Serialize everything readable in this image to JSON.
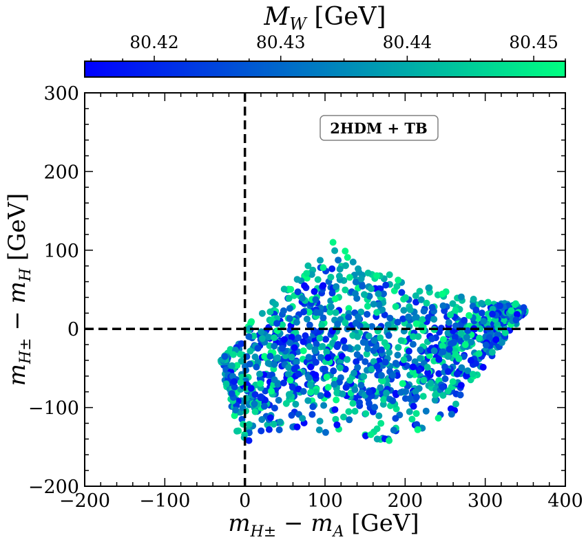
{
  "chart_data": {
    "type": "scatter",
    "title": "",
    "xlabel": "m_{H±} − m_A [GeV]",
    "ylabel": "m_{H±} − m_H [GeV]",
    "xlim": [
      -200,
      400
    ],
    "ylim": [
      -200,
      300
    ],
    "x_ticks": [
      -200,
      -100,
      0,
      100,
      200,
      300,
      400
    ],
    "x_tick_labels": [
      "−200",
      "−100",
      "0",
      "100",
      "200",
      "300",
      "400"
    ],
    "y_ticks": [
      -200,
      -100,
      0,
      100,
      200,
      300
    ],
    "y_tick_labels": [
      "−200",
      "−100",
      "0",
      "100",
      "200",
      "300"
    ],
    "reference_lines": [
      {
        "orientation": "vertical",
        "value": 0,
        "style": "dashed"
      },
      {
        "orientation": "horizontal",
        "value": 0,
        "style": "dashed"
      }
    ],
    "annotation": "2HDM + TB",
    "colorbar": {
      "label": "M_W [GeV]",
      "range": [
        80.4145,
        80.4525
      ],
      "ticks": [
        80.42,
        80.43,
        80.44,
        80.45
      ],
      "tick_labels": [
        "80.42",
        "80.43",
        "80.44",
        "80.45"
      ],
      "colormap": "winter",
      "color_low": "#0000ff",
      "color_high": "#00ff80"
    },
    "point_count": 1400,
    "region": {
      "description": "points fill a wedge: lower edge from (-30,-40) to (0,-140) to (180,-145) to (330,-5); upper edge from (-30,-40) to (110,112) to (340,30)",
      "x_range": [
        -30,
        350
      ],
      "y_range": [
        -145,
        112
      ]
    },
    "sample_points": [
      {
        "x": 110,
        "y": 110,
        "mw": 80.451
      },
      {
        "x": 180,
        "y": -142,
        "mw": 80.45
      },
      {
        "x": 5,
        "y": -142,
        "mw": 80.418
      },
      {
        "x": 115,
        "y": -122,
        "mw": 80.416
      },
      {
        "x": 165,
        "y": -127,
        "mw": 80.447
      },
      {
        "x": 348,
        "y": 27,
        "mw": 80.424
      },
      {
        "x": 338,
        "y": 32,
        "mw": 80.449
      },
      {
        "x": -25,
        "y": -35,
        "mw": 80.427
      },
      {
        "x": -10,
        "y": -130,
        "mw": 80.444
      },
      {
        "x": 325,
        "y": -5,
        "mw": 80.447
      }
    ]
  },
  "colors": {
    "axis": "#000000",
    "badge_border": "#808080"
  }
}
